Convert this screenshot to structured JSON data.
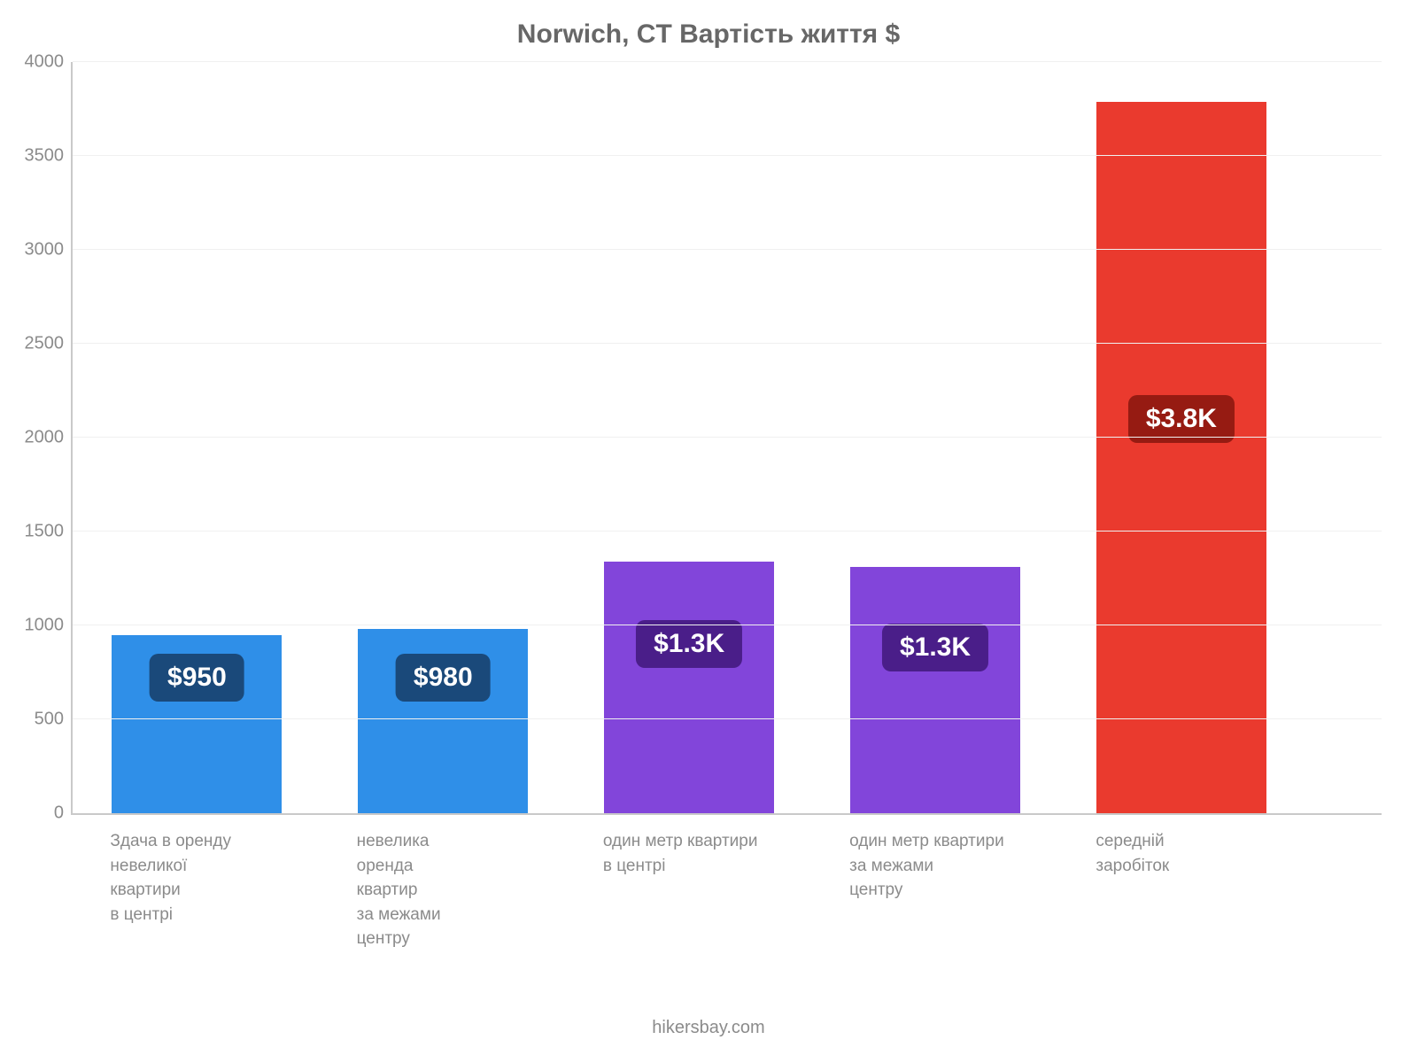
{
  "chart": {
    "type": "bar",
    "title": "Norwich, CT Вартість життя $",
    "title_color": "#676767",
    "title_fontsize": 30,
    "background_color": "#ffffff",
    "axis_color": "#c9c9c9",
    "grid_color": "#f0f0f0",
    "tick_label_color": "#8b8b8b",
    "tick_fontsize": 20,
    "category_label_fontsize": 19,
    "ylim_min": 0,
    "ylim_max": 4000,
    "ytick_step": 500,
    "yticks": [
      {
        "v": 0,
        "label": "0"
      },
      {
        "v": 500,
        "label": "500"
      },
      {
        "v": 1000,
        "label": "1000"
      },
      {
        "v": 1500,
        "label": "1500"
      },
      {
        "v": 2000,
        "label": "2000"
      },
      {
        "v": 2500,
        "label": "2500"
      },
      {
        "v": 3000,
        "label": "3000"
      },
      {
        "v": 3500,
        "label": "3500"
      },
      {
        "v": 4000,
        "label": "4000"
      }
    ],
    "bar_width_pct": 13.0,
    "bar_gap_pct": 5.8,
    "bar_left_offset_pct": 3.0,
    "value_pill_fontsize": 30,
    "value_pill_radius": 10,
    "value_pill_text_color": "#ffffff",
    "bars": [
      {
        "value": 950,
        "value_label": "$950",
        "color": "#2f8fe8",
        "pill_bg": "#1a497a",
        "pill_center_value": 720,
        "category_lines": [
          "Здача в оренду",
          "невеликої",
          "квартири",
          "в центрі"
        ]
      },
      {
        "value": 980,
        "value_label": "$980",
        "color": "#2f8fe8",
        "pill_bg": "#1a497a",
        "pill_center_value": 720,
        "category_lines": [
          "невелика",
          "оренда",
          "квартир",
          "за межами",
          "центру"
        ]
      },
      {
        "value": 1340,
        "value_label": "$1.3K",
        "color": "#8245da",
        "pill_bg": "#4a1e89",
        "pill_center_value": 900,
        "category_lines": [
          "один метр квартири",
          "в центрі"
        ]
      },
      {
        "value": 1310,
        "value_label": "$1.3K",
        "color": "#8245da",
        "pill_bg": "#4a1e89",
        "pill_center_value": 880,
        "category_lines": [
          "один метр квартири",
          "за межами",
          "центру"
        ]
      },
      {
        "value": 3790,
        "value_label": "$3.8K",
        "color": "#ea3a2e",
        "pill_bg": "#961b12",
        "pill_center_value": 2100,
        "category_lines": [
          "середній",
          "заробіток"
        ]
      }
    ],
    "footer": "hikersbay.com"
  }
}
